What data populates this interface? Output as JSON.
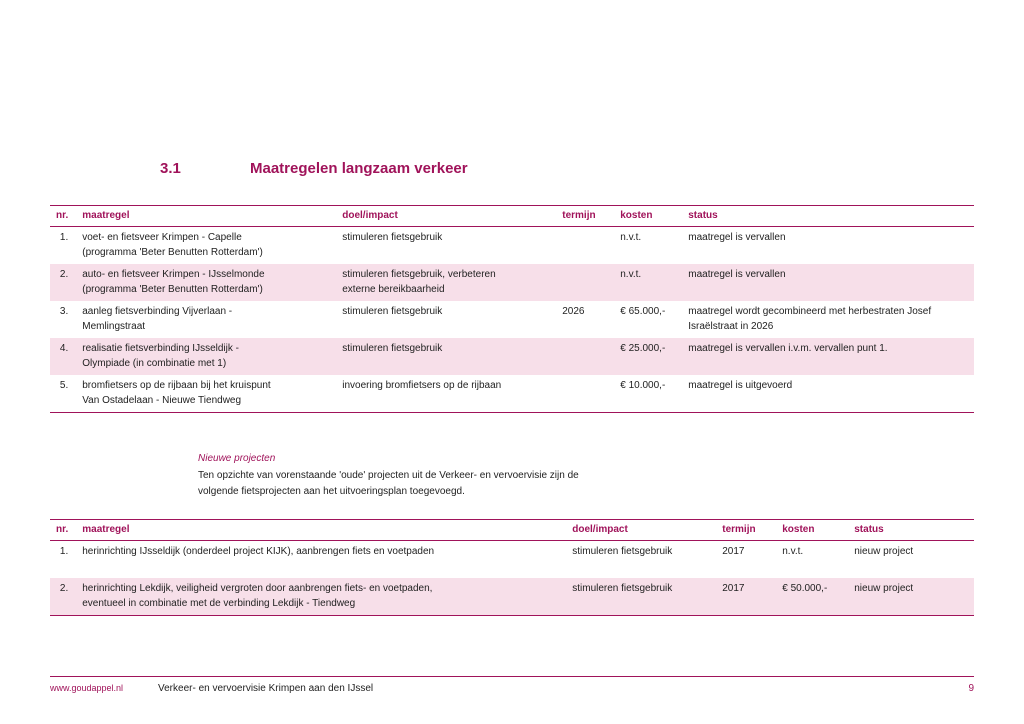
{
  "heading": {
    "num": "3.1",
    "title": "Maatregelen langzaam verkeer"
  },
  "table1": {
    "headers": {
      "nr": "nr.",
      "maatregel": "maatregel",
      "doel": "doel/impact",
      "termijn": "termijn",
      "kosten": "kosten",
      "status": "status"
    },
    "rows": [
      {
        "n": "1.",
        "m1": "voet- en fietsveer Krimpen - Capelle",
        "m2": "(programma 'Beter Benutten Rotterdam')",
        "d1": "stimuleren fietsgebruik",
        "d2": "",
        "t": "",
        "k": "n.v.t.",
        "s1": "maatregel is vervallen",
        "s2": ""
      },
      {
        "n": "2.",
        "m1": "auto- en fietsveer Krimpen - IJsselmonde",
        "m2": "(programma 'Beter Benutten Rotterdam')",
        "d1": "stimuleren fietsgebruik, verbeteren",
        "d2": "externe bereikbaarheid",
        "t": "",
        "k": "n.v.t.",
        "s1": "maatregel is vervallen",
        "s2": ""
      },
      {
        "n": "3.",
        "m1": "aanleg fietsverbinding Vijverlaan -",
        "m2": "Memlingstraat",
        "d1": "stimuleren fietsgebruik",
        "d2": "",
        "t": "2026",
        "k": "€ 65.000,-",
        "s1": "maatregel wordt gecombineerd met herbestraten Josef",
        "s2": "Israëlstraat in 2026"
      },
      {
        "n": "4.",
        "m1": "realisatie fietsverbinding IJsseldijk -",
        "m2": "Olympiade (in combinatie met 1)",
        "d1": "stimuleren fietsgebruik",
        "d2": "",
        "t": "",
        "k": "€ 25.000,-",
        "s1": "maatregel is vervallen i.v.m. vervallen punt 1.",
        "s2": ""
      },
      {
        "n": "5.",
        "m1": "bromfietsers op de rijbaan bij het kruispunt",
        "m2": "Van Ostadelaan - Nieuwe Tiendweg",
        "d1": "invoering bromfietsers op de rijbaan",
        "d2": "",
        "t": "",
        "k": "€ 10.000,-",
        "s1": "maatregel is uitgevoerd",
        "s2": ""
      }
    ]
  },
  "midtext": {
    "subhead": "Nieuwe projecten",
    "body": "Ten opzichte van vorenstaande 'oude' projecten uit de Verkeer- en vervoervisie zijn de volgende fietsprojecten aan het uitvoeringsplan toegevoegd."
  },
  "table2": {
    "headers": {
      "nr": "nr.",
      "maatregel": "maatregel",
      "doel": "doel/impact",
      "termijn": "termijn",
      "kosten": "kosten",
      "status": "status"
    },
    "rows": [
      {
        "n": "1.",
        "m1": "herinrichting IJsseldijk (onderdeel project KIJK), aanbrengen fiets en voetpaden",
        "m2": "",
        "d": "stimuleren fietsgebruik",
        "t": "2017",
        "k": "n.v.t.",
        "s": "nieuw project"
      },
      {
        "n": "2.",
        "m1": "herinrichting Lekdijk, veiligheid vergroten door aanbrengen fiets- en voetpaden,",
        "m2": "eventueel in combinatie met de verbinding Lekdijk - Tiendweg",
        "d": "stimuleren fietsgebruik",
        "t": "2017",
        "k": "€ 50.000,-",
        "s": "nieuw project"
      }
    ]
  },
  "footer": {
    "url": "www.goudappel.nl",
    "title": "Verkeer- en vervoervisie Krimpen aan den IJssel",
    "page": "9"
  },
  "colors": {
    "accent": "#a0135a",
    "rowstripe": "#f7dfe9",
    "text": "#222222",
    "bg": "#ffffff"
  }
}
